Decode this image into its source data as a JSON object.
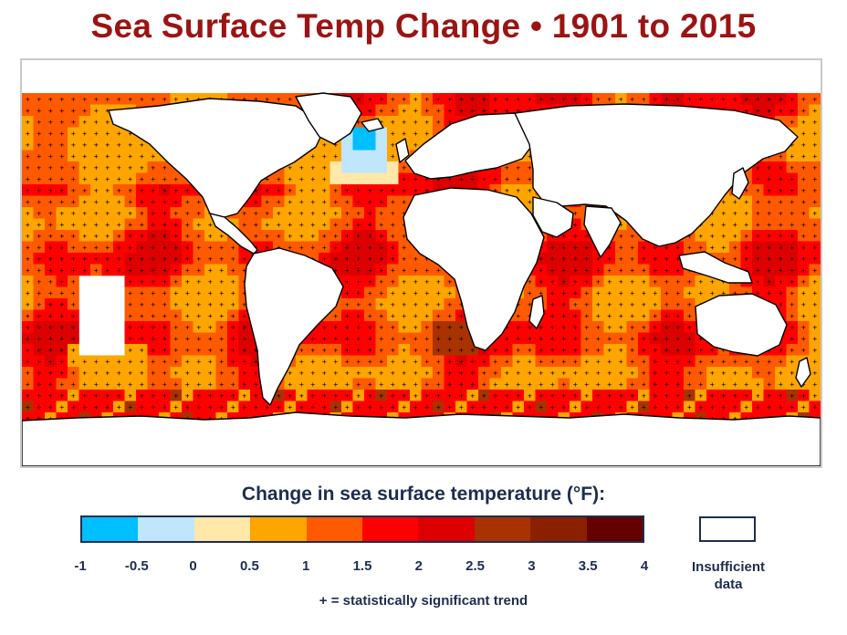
{
  "title": "Sea Surface Temp Change • 1901 to 2015",
  "legend": {
    "title": "Change in sea surface temperature (°F):",
    "bins": [
      {
        "range": [
          -1,
          -0.5
        ],
        "color": "#00bfff"
      },
      {
        "range": [
          -0.5,
          0
        ],
        "color": "#bfe6fb"
      },
      {
        "range": [
          0,
          0.5
        ],
        "color": "#ffe8a8"
      },
      {
        "range": [
          0.5,
          1
        ],
        "color": "#ffa500"
      },
      {
        "range": [
          1,
          1.5
        ],
        "color": "#ff5a00"
      },
      {
        "range": [
          1.5,
          2
        ],
        "color": "#ff0000"
      },
      {
        "range": [
          2,
          2.5
        ],
        "color": "#dc0000"
      },
      {
        "range": [
          2.5,
          3
        ],
        "color": "#a83200"
      },
      {
        "range": [
          3,
          3.5
        ],
        "color": "#8a2000"
      },
      {
        "range": [
          3.5,
          4
        ],
        "color": "#640000"
      }
    ],
    "ticks": [
      "-1",
      "-0.5",
      "0",
      "0.5",
      "1",
      "1.5",
      "2",
      "2.5",
      "3",
      "3.5",
      "4"
    ],
    "insufficient_label_line1": "Insufficient",
    "insufficient_label_line2": "data",
    "insufficient_color": "#ffffff"
  },
  "footnote": "+ = statistically significant trend",
  "map": {
    "projection": "equirectangular-pacific-centered",
    "land_color": "#ffffff",
    "outline_color": "#000000",
    "significance_marker": "+"
  }
}
